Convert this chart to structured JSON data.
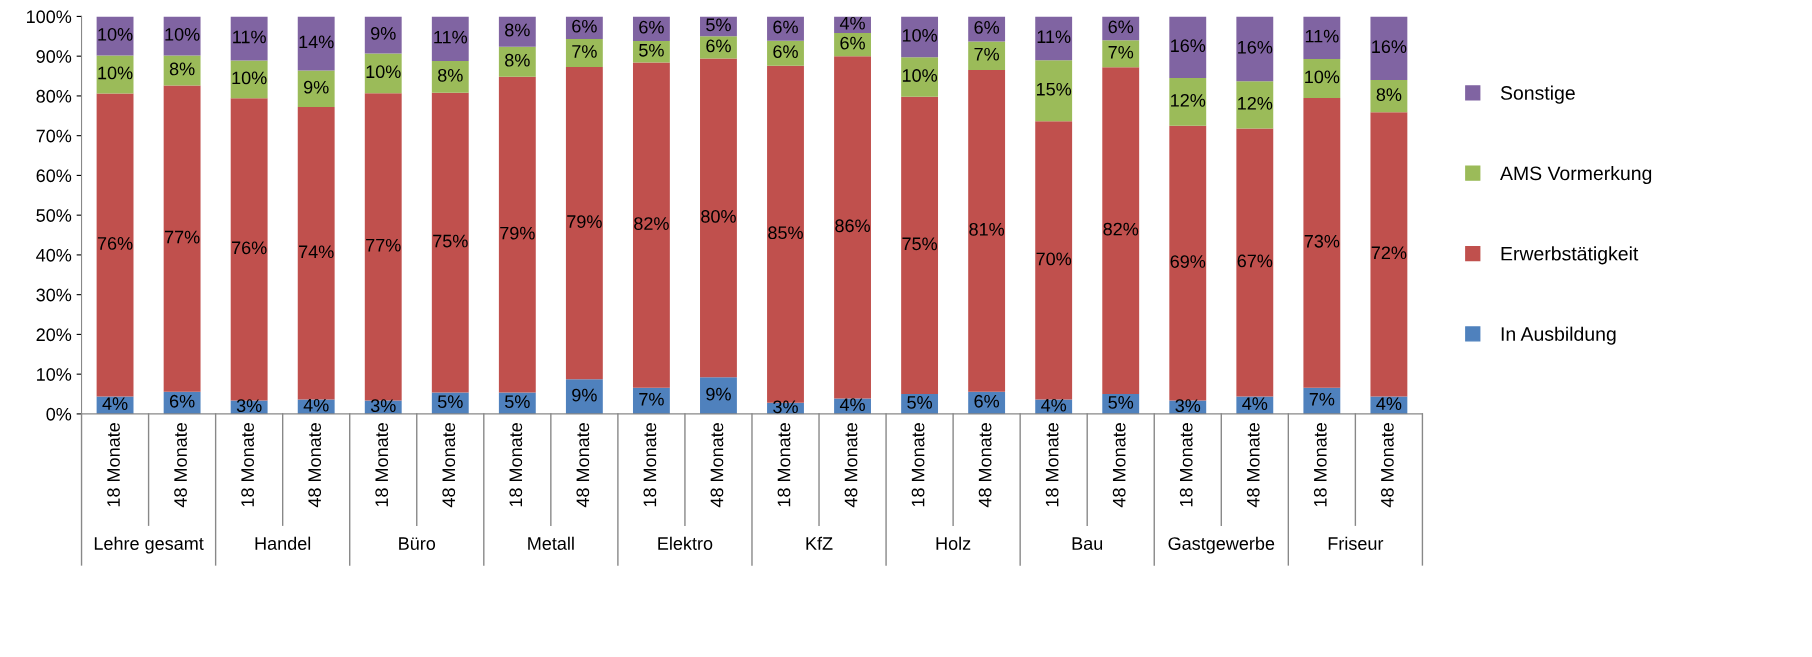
{
  "chart_data": {
    "type": "bar",
    "stacked": true,
    "legend": "right",
    "grid": false,
    "categories": [
      "18 Monate",
      "48 Monate",
      "18 Monate",
      "48 Monate",
      "18 Monate",
      "48 Monate",
      "18 Monate",
      "48 Monate",
      "18 Monate",
      "48 Monate",
      "18 Monate",
      "48 Monate",
      "18 Monate",
      "48 Monate",
      "18 Monate",
      "48 Monate",
      "18 Monate",
      "48 Monate",
      "18 Monate",
      "48 Monate"
    ],
    "annotations": [
      "Lehre gesamt",
      "Handel",
      "Büro",
      "Metall",
      "Elektro",
      "KfZ",
      "Holz",
      "Bau",
      "Gastgewerbe",
      "Friseur"
    ],
    "ylim": [
      0,
      100
    ],
    "yticks": [
      {
        "value": 0,
        "label": "0%"
      },
      {
        "value": 10,
        "label": "10%"
      },
      {
        "value": 20,
        "label": "20%"
      },
      {
        "value": 30,
        "label": "30%"
      },
      {
        "value": 40,
        "label": "40%"
      },
      {
        "value": 50,
        "label": "50%"
      },
      {
        "value": 60,
        "label": "60%"
      },
      {
        "value": 70,
        "label": "70%"
      },
      {
        "value": 80,
        "label": "80%"
      },
      {
        "value": 90,
        "label": "90%"
      },
      {
        "value": 100,
        "label": "100%"
      }
    ],
    "series": [
      {
        "name": "In Ausbildung",
        "color": "#4f81bd",
        "values": [
          4.4,
          5.6,
          3.4,
          3.6,
          3.4,
          5.4,
          5.4,
          8.7,
          6.6,
          9.2,
          2.8,
          3.9,
          5.0,
          5.6,
          3.6,
          5.0,
          3.4,
          4.4,
          6.6,
          4.4
        ],
        "value_labels": [
          "4%",
          "6%",
          "3%",
          "4%",
          "3%",
          "5%",
          "5%",
          "9%",
          "7%",
          "9%",
          "3%",
          "4%",
          "5%",
          "6%",
          "4%",
          "5%",
          "3%",
          "4%",
          "7%",
          "4%"
        ]
      },
      {
        "name": "Erwerbstätigkeit",
        "color": "#c0504d",
        "values": [
          76.2,
          77.0,
          76.0,
          73.6,
          77.3,
          75.4,
          79.4,
          78.6,
          81.8,
          80.2,
          84.8,
          86.1,
          74.8,
          80.9,
          70.0,
          82.2,
          69.1,
          67.4,
          72.9,
          71.5
        ],
        "value_labels": [
          "76%",
          "77%",
          "76%",
          "74%",
          "77%",
          "75%",
          "79%",
          "79%",
          "82%",
          "80%",
          "85%",
          "86%",
          "75%",
          "81%",
          "70%",
          "82%",
          "69%",
          "67%",
          "73%",
          "72%"
        ]
      },
      {
        "name": "AMS Vormerkung",
        "color": "#9bbb59",
        "values": [
          9.6,
          7.6,
          9.5,
          9.2,
          10.0,
          8.0,
          7.6,
          7.0,
          5.4,
          5.6,
          6.3,
          5.8,
          9.9,
          7.2,
          15.4,
          6.8,
          12.0,
          11.9,
          9.8,
          8.1
        ],
        "value_labels": [
          "10%",
          "8%",
          "10%",
          "9%",
          "10%",
          "8%",
          "8%",
          "7%",
          "5%",
          "6%",
          "6%",
          "6%",
          "10%",
          "7%",
          "15%",
          "7%",
          "12%",
          "12%",
          "10%",
          "8%"
        ]
      },
      {
        "name": "Sonstige",
        "color": "#8064a2",
        "values": [
          9.8,
          9.8,
          11.1,
          13.6,
          9.3,
          11.2,
          7.6,
          5.7,
          6.2,
          5.0,
          6.1,
          4.2,
          10.3,
          6.3,
          11.0,
          6.0,
          15.5,
          16.3,
          10.7,
          16.0
        ],
        "value_labels": [
          "10%",
          "10%",
          "11%",
          "14%",
          "9%",
          "11%",
          "8%",
          "6%",
          "6%",
          "5%",
          "6%",
          "4%",
          "10%",
          "6%",
          "11%",
          "6%",
          "16%",
          "16%",
          "11%",
          "16%"
        ]
      }
    ]
  }
}
